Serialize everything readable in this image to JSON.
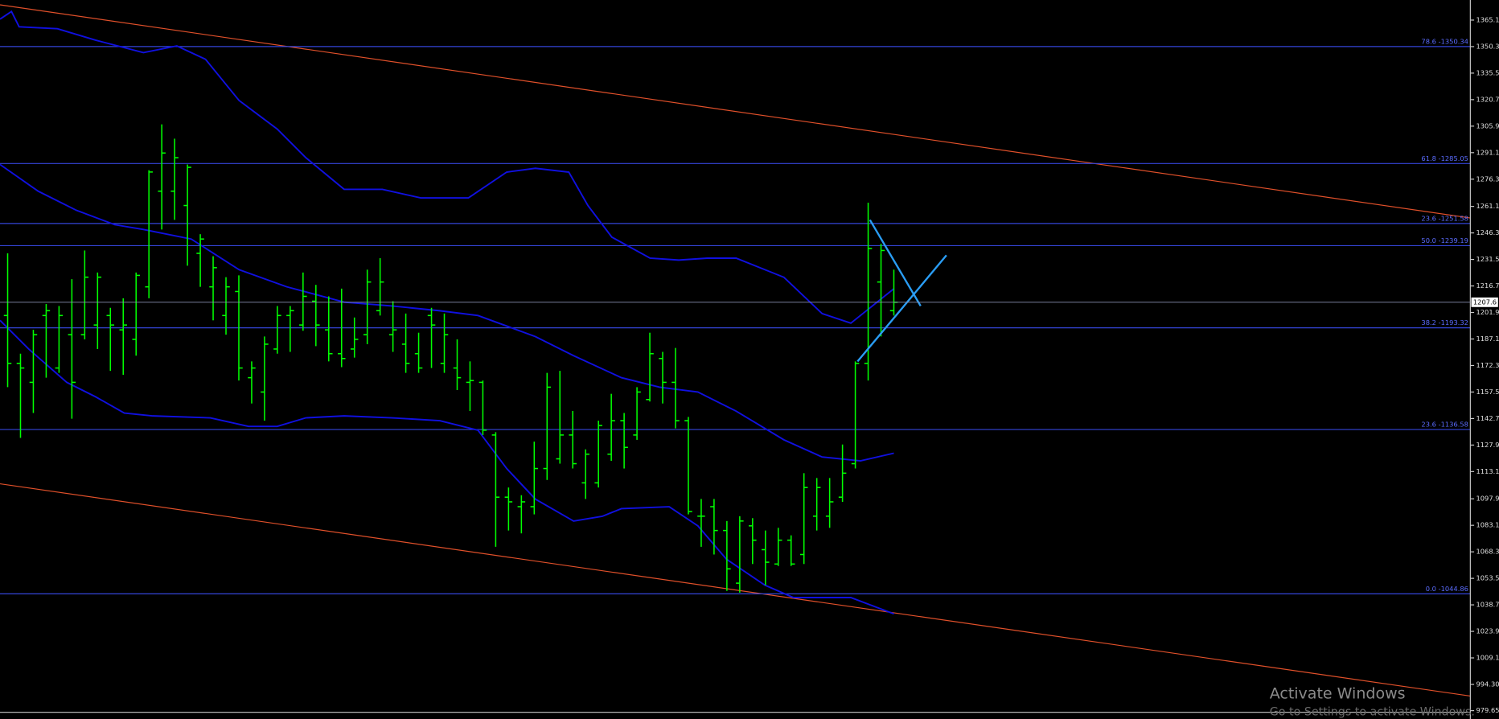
{
  "chart_data": {
    "type": "ohlc",
    "color": "#00ff00",
    "ylim": [
      975.0,
      1376.3
    ],
    "yticks": [
      1365.1,
      1350.3,
      1335.5,
      1320.7,
      1305.9,
      1291.1,
      1276.3,
      1261.1,
      1246.3,
      1231.5,
      1216.7,
      1201.9,
      1187.1,
      1172.3,
      1157.5,
      1142.7,
      1127.9,
      1113.1,
      1097.9,
      1083.1,
      1068.3,
      1053.5,
      1038.7,
      1023.9,
      1009.1,
      {
        "value": 994.3,
        "label": "994.30"
      },
      979.65
    ],
    "last_price": 1207.6,
    "levels": [
      {
        "label": "78.6 -1350.34",
        "value": 1350.34
      },
      {
        "label": "61.8 -1285.05",
        "value": 1285.05
      },
      {
        "label": "23.6 -1251.58",
        "value": 1251.58
      },
      {
        "label": "50.0 -1239.19",
        "value": 1239.19
      },
      {
        "label": "38.2 -1193.32",
        "value": 1193.32
      },
      {
        "label": "23.6 -1136.58",
        "value": 1136.58
      },
      {
        "label": "0.0 -1044.86",
        "value": 1044.86
      }
    ],
    "level_color": "#3445d8",
    "open": [
      1200.2,
      1173.5,
      1162.9,
      1200.2,
      1170.9,
      1189.5,
      1189.5,
      1194.9,
      1200.2,
      1192.2,
      1186.9,
      1216.2,
      1269.6,
      1269.6,
      1261.6,
      1234.9,
      1216.2,
      1200.2,
      1213.6,
      1165.5,
      1157.5,
      1181.5,
      1200.2,
      1194.9,
      1208.2,
      1192.2,
      1178.9,
      1181.5,
      1189.5,
      1202.9,
      1189.5,
      1184.2,
      1178.9,
      1200.2,
      1173.5,
      1170.9,
      1162.9,
      1162.9,
      1133.5,
      1098.8,
      1093.5,
      1093.5,
      1114.8,
      1120.2,
      1133.5,
      1106.8,
      1106.8,
      1122.8,
      1141.5,
      1133.5,
      1153.3,
      1176.2,
      1162.9,
      1141.5,
      1088.2,
      1093.5,
      1080.2,
      1050.8,
      1082.8,
      1069.5,
      1061.5,
      1074.8,
      1066.8,
      1088.2,
      1088.2,
      1098.8,
      1117.5,
      1173.5,
      1218.9,
      1202.9
    ],
    "high": [
      1234.9,
      1178.9,
      1192.2,
      1206.6,
      1205.5,
      1220.5,
      1236.5,
      1224.2,
      1204.5,
      1209.8,
      1224.2,
      1281.3,
      1306.9,
      1298.9,
      1284.5,
      1245.6,
      1233.3,
      1221.6,
      1222.6,
      1174.6,
      1188.5,
      1205.5,
      1205.5,
      1224.2,
      1217.3,
      1210.9,
      1215.2,
      1199.1,
      1225.8,
      1232.2,
      1208.2,
      1201.3,
      1190.6,
      1204.5,
      1201.3,
      1186.9,
      1174.6,
      1163.9,
      1135.1,
      1104.2,
      1099.9,
      1129.8,
      1168.2,
      1169.3,
      1146.9,
      1125.5,
      1141.5,
      1156.5,
      1145.8,
      1160.2,
      1190.6,
      1179.9,
      1182.1,
      1143.6,
      1097.8,
      1097.8,
      1085.5,
      1088.2,
      1087.1,
      1080.2,
      1081.7,
      1077.5,
      1112.2,
      1109.5,
      1109.5,
      1128.2,
      1174.6,
      1263.2,
      1240.2,
      1225.8
    ],
    "low": [
      1160.2,
      1131.9,
      1145.8,
      1165.5,
      1168.2,
      1142.6,
      1186.9,
      1181.5,
      1169.3,
      1167.1,
      1177.8,
      1209.8,
      1248.2,
      1253.6,
      1228.0,
      1216.2,
      1197.5,
      1189.5,
      1163.9,
      1151.1,
      1141.5,
      1178.9,
      1179.9,
      1191.7,
      1183.1,
      1174.6,
      1171.4,
      1176.7,
      1184.2,
      1200.2,
      1179.9,
      1168.2,
      1168.2,
      1170.9,
      1168.2,
      1158.6,
      1146.9,
      1133.5,
      1071.1,
      1080.2,
      1078.6,
      1089.2,
      1108.4,
      1117.5,
      1114.8,
      1097.8,
      1104.2,
      1119.1,
      1114.8,
      1130.8,
      1152.2,
      1151.1,
      1137.2,
      1089.2,
      1071.1,
      1066.8,
      1046.5,
      1045.5,
      1061.5,
      1049.7,
      1060.4,
      1060.4,
      1061.5,
      1080.2,
      1081.7,
      1096.2,
      1114.8,
      1163.9,
      1188.5,
      1200.2
    ],
    "close": [
      1173.5,
      1170.9,
      1189.5,
      1202.9,
      1200.2,
      1162.9,
      1221.6,
      1221.6,
      1194.9,
      1194.9,
      1222.6,
      1280.3,
      1290.9,
      1288.3,
      1282.9,
      1242.9,
      1226.9,
      1216.2,
      1170.9,
      1170.9,
      1184.2,
      1200.2,
      1202.9,
      1210.9,
      1194.9,
      1178.9,
      1176.2,
      1186.9,
      1218.9,
      1218.9,
      1192.2,
      1173.5,
      1170.9,
      1194.9,
      1189.5,
      1165.5,
      1163.9,
      1136.2,
      1098.8,
      1096.2,
      1096.2,
      1114.8,
      1160.2,
      1133.5,
      1117.5,
      1122.8,
      1138.8,
      1141.5,
      1126.6,
      1157.5,
      1178.9,
      1162.9,
      1141.5,
      1090.8,
      1088.2,
      1080.2,
      1058.8,
      1085.5,
      1074.8,
      1062.5,
      1074.8,
      1061.5,
      1104.2,
      1104.2,
      1096.2,
      1112.2,
      1173.5,
      1237.6,
      1236.5,
      1207.6
    ]
  },
  "overlay": {
    "watermark_title": "Activate Windows",
    "watermark_text": "Go to Settings to activate Windows."
  }
}
